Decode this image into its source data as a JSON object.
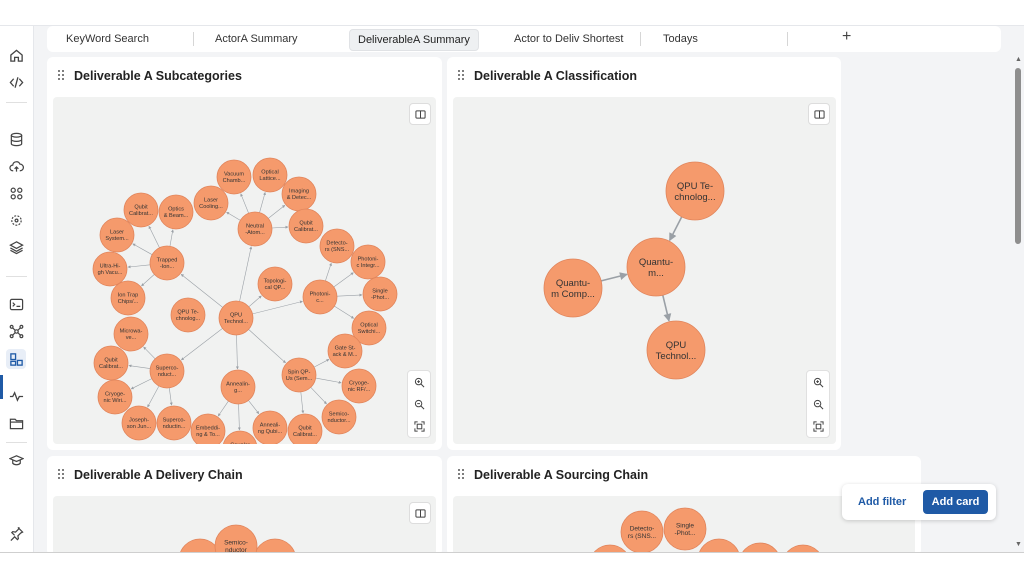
{
  "tabs": [
    {
      "label": "KeyWord Search"
    },
    {
      "label": "ActorA Summary"
    },
    {
      "label": "DeliverableA Summary"
    },
    {
      "label": "Actor to Deliv Shortest"
    },
    {
      "label": "Todays"
    }
  ],
  "tab_add_label": "+",
  "cards": {
    "subcategories": {
      "title": "Deliverable A Subcategories"
    },
    "classification": {
      "title": "Deliverable A Classification"
    },
    "delivery": {
      "title": "Deliverable A Delivery Chain"
    },
    "sourcing": {
      "title": "Deliverable A Sourcing Chain"
    }
  },
  "graphs": {
    "subcategories": {
      "nodes": [
        {
          "id": "qpu",
          "label": [
            "QPU",
            "Technol..."
          ]
        },
        {
          "id": "neutral",
          "label": [
            "Neutral",
            "-Atom..."
          ]
        },
        {
          "id": "trapped",
          "label": [
            "Trapped",
            "-Ion..."
          ]
        },
        {
          "id": "photonic",
          "label": [
            "Photoni-",
            "c..."
          ]
        },
        {
          "id": "supercond",
          "label": [
            "Superco-",
            "nduct..."
          ]
        },
        {
          "id": "spin",
          "label": [
            "Spin QP-",
            "Us (Sem..."
          ]
        },
        {
          "id": "anneal",
          "label": [
            "Annealin-",
            "g..."
          ]
        },
        {
          "id": "topo",
          "label": [
            "Topologi-",
            "cal QP..."
          ]
        },
        {
          "id": "qputech2",
          "label": [
            "QPU Te-",
            "chnolog..."
          ]
        },
        {
          "id": "vacuum",
          "label": [
            "Vacuum",
            "Chamb..."
          ]
        },
        {
          "id": "optlattice",
          "label": [
            "Optical",
            "Lattice..."
          ]
        },
        {
          "id": "imaging",
          "label": [
            "Imaging",
            "& Detec..."
          ]
        },
        {
          "id": "laserc",
          "label": [
            "Laser",
            "Cooling..."
          ]
        },
        {
          "id": "qcal1",
          "label": [
            "Qubit",
            "Calibrat..."
          ]
        },
        {
          "id": "qcal2",
          "label": [
            "Qubit",
            "Calibrat..."
          ]
        },
        {
          "id": "optics",
          "label": [
            "Optics",
            "& Beam..."
          ]
        },
        {
          "id": "lasersys",
          "label": [
            "Laser",
            "System..."
          ]
        },
        {
          "id": "uhv",
          "label": [
            "Ultra-Hi-",
            "gh Vacu..."
          ]
        },
        {
          "id": "iontrap",
          "label": [
            "Ion Trap",
            "Chips/..."
          ]
        },
        {
          "id": "detector",
          "label": [
            "Detecto-",
            "rs (SNS..."
          ]
        },
        {
          "id": "photint",
          "label": [
            "Photoni-",
            "c Integr..."
          ]
        },
        {
          "id": "singlephot",
          "label": [
            "Single",
            "-Phot..."
          ]
        },
        {
          "id": "optswitch",
          "label": [
            "Optical",
            "Switchi..."
          ]
        },
        {
          "id": "microwave",
          "label": [
            "Microwa-",
            "ve..."
          ]
        },
        {
          "id": "qcal3",
          "label": [
            "Qubit",
            "Calibrat..."
          ]
        },
        {
          "id": "cryo1",
          "label": [
            "Cryoge-",
            "nic Wiri..."
          ]
        },
        {
          "id": "joseph",
          "label": [
            "Joseph-",
            "son Jun..."
          ]
        },
        {
          "id": "supercond2",
          "label": [
            "Superco-",
            "nductin..."
          ]
        },
        {
          "id": "embed",
          "label": [
            "Embeddi-",
            "ng & To..."
          ]
        },
        {
          "id": "coupler",
          "label": [
            "Coupler",
            "/Chim..."
          ]
        },
        {
          "id": "annealq",
          "label": [
            "Anneali-",
            "ng Qubi..."
          ]
        },
        {
          "id": "qcal4",
          "label": [
            "Qubit",
            "Calibrat..."
          ]
        },
        {
          "id": "semicond",
          "label": [
            "Semico-",
            "nductor..."
          ]
        },
        {
          "id": "cryo2",
          "label": [
            "Cryoge-",
            "nic RF/..."
          ]
        },
        {
          "id": "gatestack",
          "label": [
            "Gate St-",
            "ack & M..."
          ]
        }
      ],
      "edges": [
        [
          "qpu",
          "neutral"
        ],
        [
          "qpu",
          "trapped"
        ],
        [
          "qpu",
          "photonic"
        ],
        [
          "qpu",
          "supercond"
        ],
        [
          "qpu",
          "spin"
        ],
        [
          "qpu",
          "anneal"
        ],
        [
          "qpu",
          "topo"
        ],
        [
          "neutral",
          "vacuum"
        ],
        [
          "neutral",
          "optlattice"
        ],
        [
          "neutral",
          "imaging"
        ],
        [
          "neutral",
          "laserc"
        ],
        [
          "neutral",
          "qcal2"
        ],
        [
          "trapped",
          "qcal1"
        ],
        [
          "trapped",
          "optics"
        ],
        [
          "trapped",
          "lasersys"
        ],
        [
          "trapped",
          "uhv"
        ],
        [
          "trapped",
          "iontrap"
        ],
        [
          "photonic",
          "detector"
        ],
        [
          "photonic",
          "photint"
        ],
        [
          "photonic",
          "singlephot"
        ],
        [
          "photonic",
          "optswitch"
        ],
        [
          "supercond",
          "microwave"
        ],
        [
          "supercond",
          "qcal3"
        ],
        [
          "supercond",
          "cryo1"
        ],
        [
          "supercond",
          "joseph"
        ],
        [
          "supercond",
          "supercond2"
        ],
        [
          "anneal",
          "embed"
        ],
        [
          "anneal",
          "coupler"
        ],
        [
          "anneal",
          "annealq"
        ],
        [
          "spin",
          "qcal4"
        ],
        [
          "spin",
          "semicond"
        ],
        [
          "spin",
          "cryo2"
        ],
        [
          "spin",
          "gatestack"
        ]
      ]
    },
    "classification": {
      "nodes": [
        {
          "id": "qpute",
          "label": [
            "QPU Te-",
            "chnolog..."
          ]
        },
        {
          "id": "quantum",
          "label": [
            "Quantu-",
            "m..."
          ]
        },
        {
          "id": "qcomp",
          "label": [
            "Quantu-",
            "m Comp..."
          ]
        },
        {
          "id": "qputech",
          "label": [
            "QPU",
            "Technol..."
          ]
        }
      ],
      "edges": [
        [
          "qpute",
          "quantum"
        ],
        [
          "qcomp",
          "quantum"
        ],
        [
          "quantum",
          "qputech"
        ]
      ]
    },
    "delivery": {
      "nodes": [
        {
          "id": "semi",
          "label": [
            "Semico-",
            "nductor"
          ]
        }
      ]
    },
    "sourcing": {
      "nodes": [
        {
          "id": "det",
          "label": [
            "Detecto-",
            "rs (SNS..."
          ]
        },
        {
          "id": "sp",
          "label": [
            "Single",
            "-Phot..."
          ]
        }
      ]
    }
  },
  "buttons": {
    "add_filter": "Add filter",
    "add_card": "Add card"
  },
  "colors": {
    "node_fill": "#f59a6c",
    "accent": "#1f5aa6"
  },
  "icons": {
    "rail": [
      "home-icon",
      "code-icon",
      "database-icon",
      "cloud-upload-icon",
      "integrations-icon",
      "target-icon",
      "layers-icon",
      "terminal-icon",
      "graph-icon",
      "dashboard-icon",
      "activity-icon",
      "folder-icon",
      "learn-icon",
      "pin-icon"
    ]
  }
}
